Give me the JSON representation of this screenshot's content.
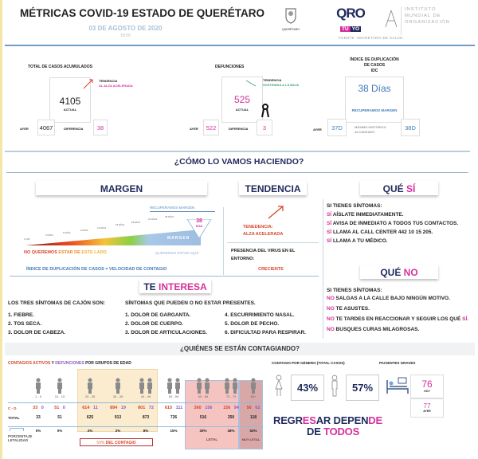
{
  "header": {
    "title": "MÉTRICAS COVID-19 ESTADO DE QUERÉTARO",
    "date": "03 DE AGOSTO DE 2020",
    "time": "18:00",
    "logo_queretaro": "QUERÉTARO",
    "logo_qro": "QRO",
    "logo_tuyo_a": "TÚ",
    "logo_tuyo_b": "YO",
    "institute": [
      "INSTITUTO",
      "MUNDIAL DE",
      "ORGANIZACIÓN"
    ],
    "source": "FUENTE: SECRETARÍA DE SALUD."
  },
  "cases": {
    "title": "TOTAL DE CASOS ACUMULADOS",
    "value": "4105",
    "actual_label": "ACTUAL",
    "trend_label": "TENDENCIA",
    "trend_value": "AL ALZA ACELERADA",
    "yesterday_label": "AYER",
    "yesterday": "4067",
    "diff_label": "DIFERENCIA",
    "diff": "38"
  },
  "deaths": {
    "title": "DEFUNCIONES",
    "value": "525",
    "actual_label": "ACTUAL",
    "trend_label": "TENDENCIA",
    "trend_value": "SOSTENIDA A LA BAJA",
    "yesterday_label": "AYER",
    "yesterday": "522",
    "diff_label": "DIFERENCIA",
    "diff": "3"
  },
  "idc": {
    "title": [
      "ÍNDICE DE DUPLICACIÓN",
      "DE CASOS",
      "IDC"
    ],
    "value": "38 Días",
    "status": "RECUPERAMOS MARGEN",
    "yesterday_label": "AYER",
    "yesterday": "37D",
    "max_label": [
      "MÁXIMO HISTÓRICO",
      "ALCANZADO"
    ],
    "max": "38D"
  },
  "how": {
    "title": "¿CÓMO LO VAMOS HACIENDO?"
  },
  "margen": {
    "title": "MARGEN",
    "recover": "RECUPERAMOS MARGEN",
    "days_value": "38",
    "days_unit": "DÍAS",
    "bar_label": "MARGEN",
    "ticks": [
      "1 DÍA",
      "3 DÍAS",
      "6 DÍAS",
      "9 DÍAS",
      "12 DÍAS",
      "15 DÍAS",
      "18 DÍAS",
      "21 DÍAS",
      "25 DÍAS"
    ],
    "bad_a": "NO QUEREMOS ",
    "bad_b": "ESTAR DE ",
    "bad_c": "ESTE LADO",
    "good": "QUEREMOS ESTAR AQUÍ",
    "formula": "ÍNDICE DE DUPLICACIÓN DE CASOS = VELOCIDAD DE CONTAGIO"
  },
  "tendencia": {
    "title": "TENDENCIA",
    "label": "TENEDENCIA:",
    "value": "ALZA ACELERADA",
    "presence": "PRESENCIA DEL VIRUS EN EL ENTORNO:",
    "presence_value": "CRECIENTE"
  },
  "que_si": {
    "title_a": "QUÉ ",
    "title_b": "SÍ",
    "intro": "SI TIENES SÍNTOMAS:",
    "prefix": "SÍ",
    "items": [
      " AÍSLATE INMEDIATAMENTE.",
      " AVISA DE INMEDIATO A TODOS TUS CONTACTOS.",
      " LLAMA AL CALL CENTER 442 10 15 205.",
      " LLAMA A TU MÉDICO."
    ]
  },
  "que_no": {
    "title_a": "QUÉ ",
    "title_b": "NO",
    "intro": "SI TIENES SÍNTOMAS:",
    "prefix": "NO",
    "items": [
      " SALGAS A LA CALLE BAJO NINGÚN MOTIVO.",
      " TE ASUSTES.",
      " TE TARDES EN REACCIONAR Y SEGUIR LOS QUÉ ",
      " BUSQUES CURAS MILAGROSAS."
    ],
    "item3_suffix": "SÍ."
  },
  "interesa": {
    "title_a": "TE ",
    "title_b": "INTERESA",
    "main_title": "LOS TRES SÍNTOMAS DE CAJÓN SON:",
    "main": [
      "1. FIEBRE.",
      "2. TOS SECA.",
      "3. DOLOR DE CABEZA."
    ],
    "other_title": "SÍNTOMAS QUE PUEDEN O NO ESTAR PRESENTES.",
    "other": [
      "1. DOLOR DE GARGANTA.",
      "2. DOLOR DE CUERPO.",
      "3. DOLOR DE ARTICULACIONES.",
      "4. ESCURRIMIENTO NASAL.",
      "5. DOLOR DE PECHO.",
      "6. DIFICULTAD PARA RESPIRAR."
    ]
  },
  "who": {
    "title": "¿QUIÉNES SE ESTÁN CONTAGIANDO?",
    "subtitle_a": "CONTAGIOS ACTIVOS",
    "subtitle_b": " Y ",
    "subtitle_c": "DEFUNCIONES",
    "subtitle_d": " POR GRUPOS DE EDAD",
    "cd_label": "C - D",
    "total_label": "TOTAL",
    "lethality_label": [
      "PORCENTAJE",
      "LETALIDAD"
    ],
    "contagion_pct": "59%",
    "contagion_label": "DEL CONTAGIO",
    "lethal": "LETAL",
    "very_lethal": "MUY LETAL",
    "groups": [
      {
        "age": "1 - 9",
        "c": "33",
        "d": "0",
        "total": "33",
        "pct": "0%"
      },
      {
        "age": "10 - 19",
        "c": "51",
        "d": "0",
        "total": "51",
        "pct": "0%"
      },
      {
        "age": "20 - 29",
        "c": "614",
        "d": "11",
        "total": "625",
        "pct": "2%"
      },
      {
        "age": "30 - 39",
        "c": "894",
        "d": "19",
        "total": "913",
        "pct": "2%"
      },
      {
        "age": "40 - 49",
        "c": "801",
        "d": "72",
        "total": "873",
        "pct": "8%"
      },
      {
        "age": "50 - 59",
        "c": "615",
        "d": "111",
        "total": "726",
        "pct": "15%"
      },
      {
        "age": "60 - 69",
        "c": "360",
        "d": "156",
        "total": "516",
        "pct": "30%"
      },
      {
        "age": "70 - 79",
        "c": "156",
        "d": "94",
        "total": "250",
        "pct": "38%"
      },
      {
        "age": "80+",
        "c": "56",
        "d": "62",
        "total": "118",
        "pct": "53%"
      }
    ]
  },
  "gender": {
    "title": "CONTAGIO POR GÉNERO (TOTAL CASOS)",
    "female": "43%",
    "male": "57%"
  },
  "severe": {
    "title": "PACIENTES GRAVES",
    "today": "76",
    "today_label": "HOY",
    "yesterday": "77",
    "yesterday_label": "AYER"
  },
  "slogan": {
    "l1a": "REGR",
    "l1b": "ES",
    "l1c": "AR DEPEN",
    "l1d": "DE",
    "l2a": "DE ",
    "l2b": "TODOS"
  }
}
